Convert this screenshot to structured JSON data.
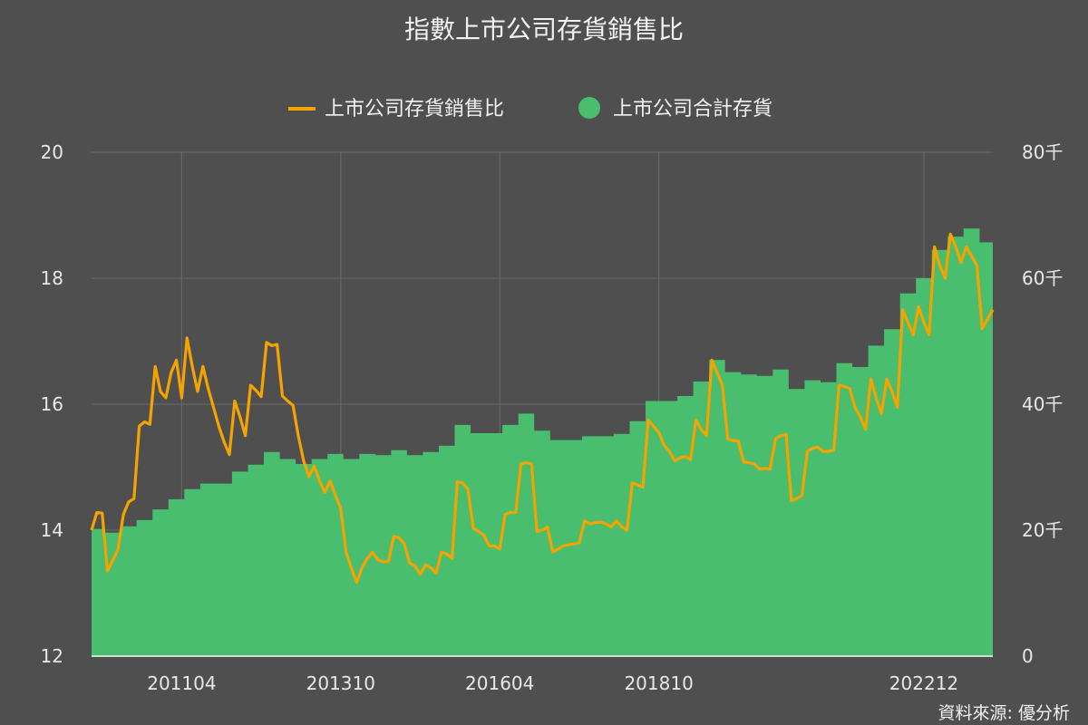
{
  "chart_data": {
    "type": "line+area",
    "title": "指數上市公司存貨銷售比",
    "source": "資料來源: 優分析",
    "legend": {
      "placement": "top-center",
      "entries": [
        {
          "name": "上市公司存貨銷售比",
          "shape": "line",
          "color": "#f5a300"
        },
        {
          "name": "上市公司合計存貨",
          "shape": "circle",
          "color": "#48be6e"
        }
      ]
    },
    "left_axis": {
      "ylim": [
        12,
        20
      ],
      "ticks": [
        "12",
        "14",
        "16",
        "18",
        "20"
      ]
    },
    "right_axis": {
      "ylim": [
        0,
        80
      ],
      "ticks": [
        "0",
        "20千",
        "40千",
        "60千",
        "80千"
      ]
    },
    "x_axis": {
      "start": "200911",
      "end": "202212",
      "tick_labels": [
        "201104",
        "201310",
        "201604",
        "201810",
        "202212"
      ]
    },
    "grid": true,
    "series": [
      {
        "name": "上市公司合計存貨",
        "axis": "right",
        "color": "#48be6e",
        "values": [
          20.2,
          20.2,
          20.2,
          19.6,
          19.6,
          19.6,
          20.6,
          20.6,
          20.6,
          21.6,
          21.6,
          21.6,
          23.3,
          23.3,
          23.3,
          24.9,
          24.9,
          24.9,
          26.5,
          26.5,
          26.5,
          27.4,
          27.4,
          27.4,
          27.4,
          27.4,
          27.4,
          29.3,
          29.3,
          29.3,
          30.4,
          30.4,
          30.4,
          32.4,
          32.4,
          32.4,
          31.3,
          31.3,
          31.3,
          30.5,
          30.5,
          30.5,
          31.3,
          31.3,
          31.3,
          32.1,
          32.1,
          32.1,
          31.3,
          31.3,
          31.3,
          32.1,
          32.1,
          32.1,
          31.9,
          31.9,
          31.9,
          32.7,
          32.7,
          32.7,
          31.9,
          31.9,
          31.9,
          32.4,
          32.4,
          32.4,
          33.4,
          33.4,
          33.4,
          36.7,
          36.7,
          36.7,
          35.4,
          35.4,
          35.4,
          35.4,
          35.4,
          35.4,
          36.7,
          36.7,
          36.7,
          38.5,
          38.5,
          38.5,
          35.8,
          35.8,
          35.8,
          34.3,
          34.3,
          34.3,
          34.3,
          34.3,
          34.3,
          34.9,
          34.9,
          34.9,
          34.9,
          34.9,
          34.9,
          35.3,
          35.3,
          35.3,
          37.3,
          37.3,
          37.3,
          40.5,
          40.5,
          40.5,
          40.5,
          40.5,
          40.5,
          41.3,
          41.3,
          41.3,
          43.6,
          43.6,
          43.6,
          47,
          47,
          47,
          45.1,
          45.1,
          45.1,
          44.7,
          44.7,
          44.7,
          44.5,
          44.5,
          44.5,
          45.5,
          45.5,
          45.5,
          42.4,
          42.4,
          42.4,
          43.8,
          43.8,
          43.8,
          43.5,
          43.5,
          43.5,
          46.5,
          46.5,
          46.5,
          45.9,
          45.9,
          45.9,
          49.3,
          49.3,
          49.3,
          51.9,
          51.9,
          51.9,
          57.6,
          57.6,
          57.6,
          60,
          60,
          60,
          64.5,
          64.5,
          64.5,
          66.6,
          66.6,
          66.6,
          67.9,
          67.9,
          67.9,
          65.7,
          65.7,
          65.7
        ]
      },
      {
        "name": "上市公司存貨銷售比",
        "axis": "left",
        "color": "#f5a300",
        "values": [
          14.0,
          14.28,
          14.27,
          13.35,
          13.52,
          13.7,
          14.25,
          14.45,
          14.5,
          15.65,
          15.72,
          15.68,
          16.6,
          16.2,
          16.1,
          16.5,
          16.7,
          16.1,
          17.05,
          16.6,
          16.2,
          16.6,
          16.25,
          15.95,
          15.65,
          15.4,
          15.2,
          16.05,
          15.8,
          15.5,
          16.3,
          16.22,
          16.12,
          16.98,
          16.93,
          16.95,
          16.13,
          16.05,
          15.98,
          15.5,
          15.1,
          14.85,
          15.02,
          14.78,
          14.6,
          14.78,
          14.55,
          14.35,
          13.65,
          13.4,
          13.17,
          13.4,
          13.55,
          13.65,
          13.53,
          13.5,
          13.5,
          13.9,
          13.88,
          13.78,
          13.48,
          13.43,
          13.3,
          13.45,
          13.4,
          13.32,
          13.65,
          13.62,
          13.55,
          14.77,
          14.75,
          14.65,
          14.03,
          13.98,
          13.92,
          13.75,
          13.75,
          13.7,
          14.25,
          14.28,
          14.28,
          15.05,
          15.07,
          15.05,
          13.98,
          14.0,
          14.05,
          13.65,
          13.7,
          13.75,
          13.77,
          13.78,
          13.8,
          14.15,
          14.1,
          14.12,
          14.13,
          14.1,
          14.05,
          14.15,
          14.05,
          14.0,
          14.75,
          14.72,
          14.68,
          15.75,
          15.65,
          15.55,
          15.35,
          15.25,
          15.1,
          15.15,
          15.17,
          15.12,
          15.75,
          15.6,
          15.5,
          16.7,
          16.5,
          16.3,
          15.45,
          15.42,
          15.42,
          15.08,
          15.07,
          15.05,
          14.97,
          14.98,
          14.97,
          15.45,
          15.5,
          15.52,
          14.47,
          14.5,
          14.55,
          15.25,
          15.3,
          15.32,
          15.25,
          15.25,
          15.27,
          16.3,
          16.28,
          16.25,
          15.95,
          15.8,
          15.6,
          16.4,
          16.1,
          15.85,
          16.4,
          16.2,
          15.95,
          17.5,
          17.3,
          17.1,
          17.55,
          17.3,
          17.1,
          18.5,
          18.2,
          18.0,
          18.7,
          18.5,
          18.25,
          18.5,
          18.35,
          18.2,
          17.2,
          17.35,
          17.5
        ]
      }
    ]
  }
}
